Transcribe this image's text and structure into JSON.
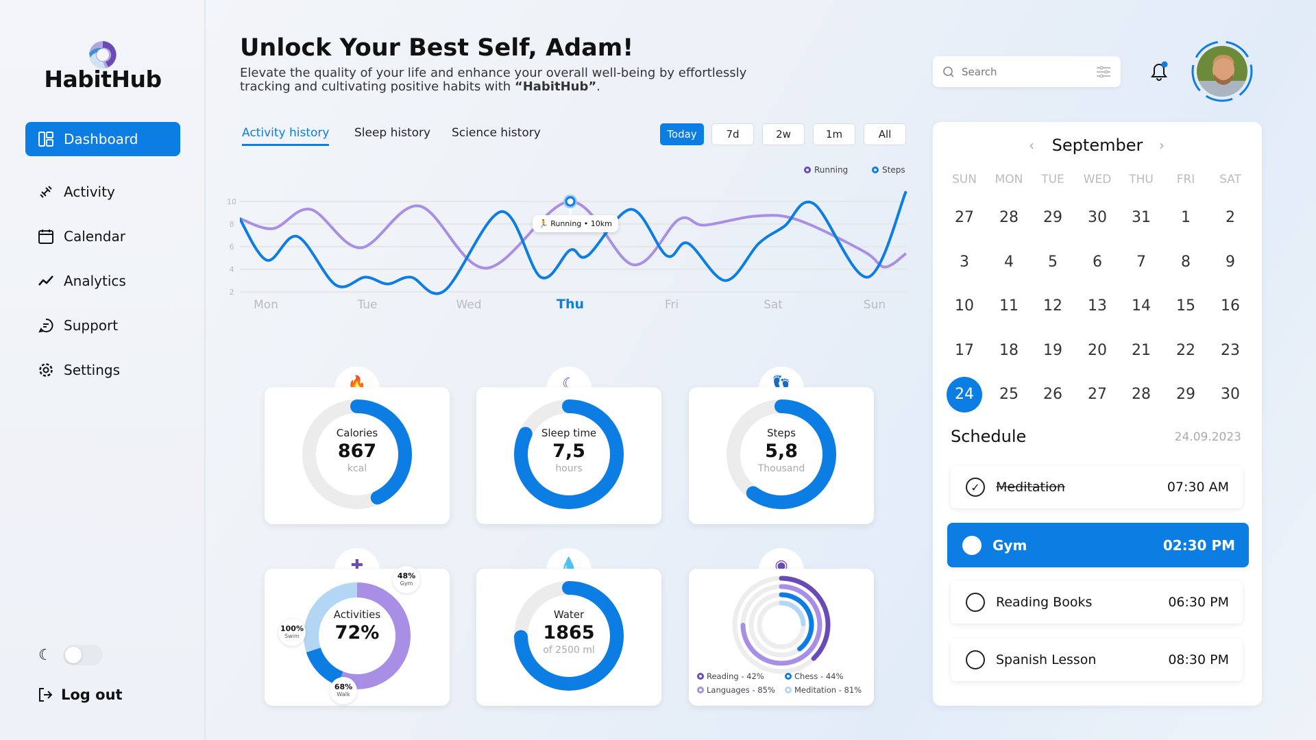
{
  "app": {
    "name": "HabitHub"
  },
  "sidebar": {
    "items": [
      {
        "label": "Dashboard",
        "icon": "dashboard-icon",
        "active": true
      },
      {
        "label": "Activity",
        "icon": "dumbbell-icon"
      },
      {
        "label": "Calendar",
        "icon": "calendar-icon"
      },
      {
        "label": "Analytics",
        "icon": "trend-icon"
      },
      {
        "label": "Support",
        "icon": "chat-icon"
      },
      {
        "label": "Settings",
        "icon": "gear-icon"
      }
    ],
    "logout": "Log out",
    "dark_mode": false
  },
  "header": {
    "title": "Unlock Your Best Self, Adam!",
    "subtitle_pre": "Elevate the quality of your life and enhance your overall well-being by effortlessly tracking and cultivating positive habits with ",
    "subtitle_brand": "“HabitHub”",
    "subtitle_post": "."
  },
  "search": {
    "placeholder": "Search"
  },
  "notifications": {
    "has_unread": true
  },
  "tabs": [
    {
      "label": "Activity history",
      "active": true
    },
    {
      "label": "Sleep history"
    },
    {
      "label": "Science history"
    }
  ],
  "ranges": [
    {
      "label": "Today",
      "active": true
    },
    {
      "label": "7d"
    },
    {
      "label": "2w"
    },
    {
      "label": "1m"
    },
    {
      "label": "All"
    }
  ],
  "colors": {
    "accent": "#0c7de3",
    "purple": "#6a4bb5",
    "light_purple": "#a98ee6",
    "light_blue": "#b3d6f5",
    "track": "#ececec"
  },
  "chart_data": {
    "type": "line",
    "xticks": [
      "Mon",
      "Tue",
      "Wed",
      "Thu",
      "Fri",
      "Sat",
      "Sun"
    ],
    "highlight_tick": "Thu",
    "yticks": [
      2,
      4,
      6,
      8,
      10
    ],
    "ylim": [
      2,
      10
    ],
    "grid": true,
    "legend": "top-right",
    "series": [
      {
        "name": "Running",
        "color": "#a98ee6",
        "x": [
          -0.26,
          0.07,
          0.44,
          0.93,
          1.51,
          2.17,
          3.0,
          3.62,
          4.07,
          4.32,
          4.82,
          5.23,
          5.89,
          6.1,
          6.31
        ],
        "y": [
          8.5,
          7.6,
          9.3,
          5.9,
          9.6,
          4.1,
          10,
          4.4,
          8.4,
          7.9,
          8.7,
          8.4,
          5.6,
          4.2,
          5.4
        ]
      },
      {
        "name": "Steps",
        "color": "#0c7de3",
        "x": [
          -0.26,
          0.01,
          0.31,
          0.69,
          0.98,
          1.2,
          1.43,
          1.76,
          2.32,
          2.71,
          3.0,
          3.17,
          3.6,
          3.95,
          4.16,
          4.53,
          4.86,
          5.11,
          5.4,
          5.93,
          6.31
        ],
        "y": [
          8.5,
          4.8,
          6.9,
          2.6,
          3.3,
          2.7,
          3.3,
          2.1,
          9.1,
          3.3,
          5.7,
          5.2,
          9.3,
          5.2,
          6.3,
          3.0,
          6.3,
          7.8,
          9.8,
          3.3,
          10.9
        ]
      }
    ],
    "tooltip": {
      "text": "Running • 10km",
      "x": 3.0,
      "y": 10
    }
  },
  "stats": [
    {
      "label": "Calories",
      "value": "867",
      "unit": "kcal",
      "progress": 0.43,
      "icon": "fire-icon",
      "glyph": "🔥"
    },
    {
      "label": "Sleep time",
      "value": "7,5",
      "unit": "hours",
      "progress": 0.82,
      "icon": "moon-icon",
      "glyph": "☾"
    },
    {
      "label": "Steps",
      "value": "5,8",
      "unit": "Thousand",
      "progress": 0.6,
      "icon": "footprints-icon",
      "glyph": "👣"
    },
    {
      "label": "Activities",
      "value": "72%",
      "icon": "dumbbell-icon",
      "glyph": "✚",
      "segments": [
        {
          "name": "Gym",
          "pct": "48%",
          "share": 0.56,
          "color": "#a98ee6"
        },
        {
          "name": "Walk",
          "pct": "68%",
          "share": 0.14,
          "color": "#0c7de3"
        },
        {
          "name": "Swim",
          "pct": "100%",
          "share": 0.3,
          "color": "#b3d6f5"
        }
      ]
    },
    {
      "label": "Water",
      "value": "1865",
      "unit": "of 2500 ml",
      "progress": 0.746,
      "icon": "drop-icon",
      "glyph": "💧"
    },
    {
      "icon": "brain-icon",
      "glyph": "◉",
      "rings": [
        {
          "name": "Reading - 42%",
          "value": 0.42,
          "color": "#6a4bb5"
        },
        {
          "name": "Languages - 85%",
          "value": 0.85,
          "color": "#a98ee6"
        },
        {
          "name": "Chess - 44%",
          "value": 0.44,
          "color": "#0c7de3"
        },
        {
          "name": "Meditation - 81%",
          "value": 0.81,
          "color": "#b3d6f5"
        }
      ]
    }
  ],
  "calendar": {
    "month": "September",
    "weekdays": [
      "SUN",
      "MON",
      "TUE",
      "WED",
      "THU",
      "FRI",
      "SAT"
    ],
    "weeks": [
      [
        "27",
        "28",
        "29",
        "30",
        "31",
        "1",
        "2"
      ],
      [
        "3",
        "4",
        "5",
        "6",
        "7",
        "8",
        "9"
      ],
      [
        "10",
        "11",
        "12",
        "13",
        "14",
        "15",
        "16"
      ],
      [
        "17",
        "18",
        "19",
        "20",
        "21",
        "22",
        "23"
      ],
      [
        "24",
        "25",
        "26",
        "27",
        "28",
        "29",
        "30"
      ]
    ],
    "selected": "24"
  },
  "schedule": {
    "title": "Schedule",
    "date": "24.09.2023",
    "items": [
      {
        "name": "Meditation",
        "time": "07:30 AM",
        "done": true
      },
      {
        "name": "Gym",
        "time": "02:30 PM",
        "active": true
      },
      {
        "name": "Reading Books",
        "time": "06:30 PM"
      },
      {
        "name": "Spanish Lesson",
        "time": "08:30 PM"
      }
    ]
  }
}
